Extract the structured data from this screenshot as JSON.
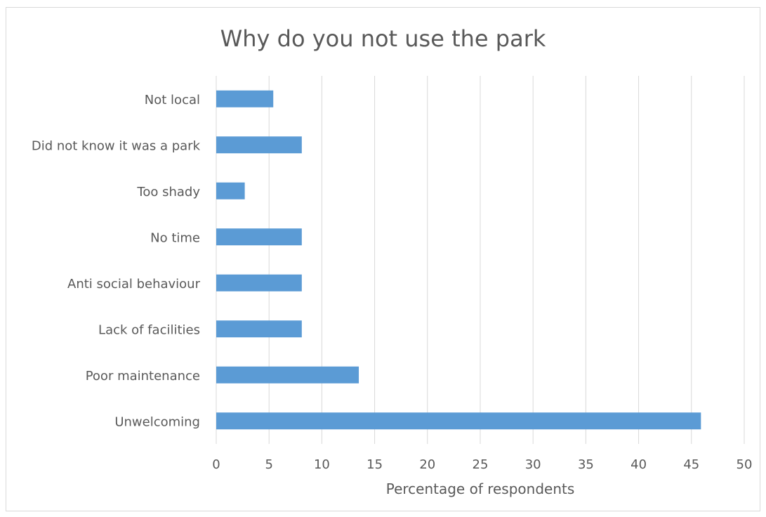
{
  "chart_data": {
    "type": "bar",
    "orientation": "horizontal",
    "title": "Why do you not use the park",
    "xlabel": "Percentage of respondents",
    "ylabel": "",
    "categories": [
      "Not local",
      "Did not know it was a park",
      "Too shady",
      "No time",
      "Anti social behaviour",
      "Lack of facilities",
      "Poor maintenance",
      "Unwelcoming"
    ],
    "values": [
      5.4,
      8.1,
      2.7,
      8.1,
      8.1,
      8.1,
      13.5,
      45.9
    ],
    "xlim": [
      0,
      50
    ],
    "xticks": [
      0,
      5,
      10,
      15,
      20,
      25,
      30,
      35,
      40,
      45,
      50
    ],
    "grid": true,
    "legend": "none",
    "bar_color": "#5b9bd5",
    "grid_color": "#d9d9d9",
    "text_color": "#595959"
  }
}
